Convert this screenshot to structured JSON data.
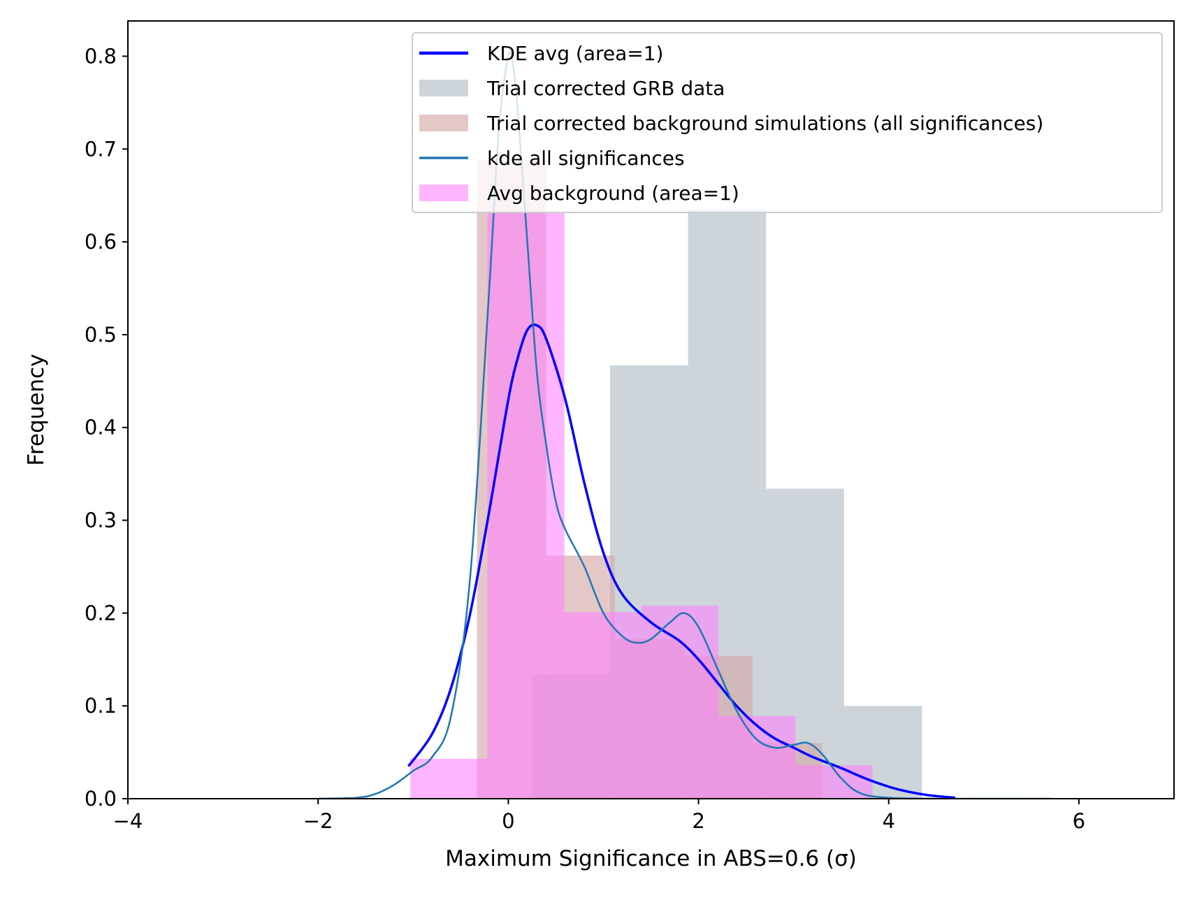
{
  "chart_data": {
    "type": "bar",
    "xlabel": "Maximum Significance in ABS=0.6 (σ)",
    "ylabel": "Frequency",
    "xlim": [
      -4,
      7
    ],
    "ylim": [
      0,
      0.838
    ],
    "xticks": [
      -4,
      -2,
      0,
      2,
      4,
      6
    ],
    "yticks": [
      0.0,
      0.1,
      0.2,
      0.3,
      0.4,
      0.5,
      0.6,
      0.7,
      0.8
    ],
    "grid": false,
    "legend_placement": "top-right",
    "colors": {
      "kde_avg": "#0000ff",
      "grb_hist": "#aebbc4",
      "bg_sim_hist": "#d3a7a7",
      "kde_all": "#1f77b4",
      "avg_bg_hist": "#ff80ff"
    },
    "legend": [
      {
        "key": "kde_avg",
        "label": "KDE avg (area=1)",
        "kind": "line"
      },
      {
        "key": "grb",
        "label": "Trial corrected GRB data",
        "kind": "patch"
      },
      {
        "key": "bgsim",
        "label": "Trial corrected background simulations (all significances)",
        "kind": "patch"
      },
      {
        "key": "kde_all",
        "label": "kde all significances",
        "kind": "line"
      },
      {
        "key": "avgbg",
        "label": "Avg background (area=1)",
        "kind": "patch"
      }
    ],
    "histograms": [
      {
        "key": "grb",
        "name": "Trial corrected GRB data",
        "color": "#aebbc4",
        "opacity": 0.62,
        "bins": [
          {
            "x0": 0.25,
            "x1": 1.07,
            "y": 0.134
          },
          {
            "x0": 1.07,
            "x1": 1.89,
            "y": 0.467
          },
          {
            "x0": 1.89,
            "x1": 2.71,
            "y": 0.635
          },
          {
            "x0": 2.71,
            "x1": 3.53,
            "y": 0.334
          },
          {
            "x0": 3.53,
            "x1": 4.35,
            "y": 0.1
          }
        ]
      },
      {
        "key": "bgsim",
        "name": "Trial corrected background simulations (all significances)",
        "color": "#d3a7a7",
        "opacity": 0.62,
        "bins": [
          {
            "x0": -0.33,
            "x1": 0.4,
            "y": 0.688
          },
          {
            "x0": 0.4,
            "x1": 1.12,
            "y": 0.262
          },
          {
            "x0": 1.12,
            "x1": 1.85,
            "y": 0.172
          },
          {
            "x0": 1.85,
            "x1": 2.57,
            "y": 0.154
          },
          {
            "x0": 2.57,
            "x1": 3.3,
            "y": 0.06
          }
        ]
      },
      {
        "key": "avgbg",
        "name": "Avg background (area=1)",
        "color": "#ff80ff",
        "opacity": 0.58,
        "bins": [
          {
            "x0": -1.03,
            "x1": -0.22,
            "y": 0.043
          },
          {
            "x0": -0.22,
            "x1": 0.59,
            "y": 0.632
          },
          {
            "x0": 0.59,
            "x1": 1.4,
            "y": 0.201
          },
          {
            "x0": 1.4,
            "x1": 2.21,
            "y": 0.208
          },
          {
            "x0": 2.21,
            "x1": 3.02,
            "y": 0.089
          },
          {
            "x0": 3.02,
            "x1": 3.83,
            "y": 0.036
          }
        ]
      }
    ],
    "series": [
      {
        "key": "kde_avg",
        "name": "KDE avg (area=1)",
        "color": "#0000ff",
        "width": 3.5,
        "x": [
          -1.05,
          -0.8,
          -0.6,
          -0.4,
          -0.2,
          0.0,
          0.1,
          0.2,
          0.3,
          0.4,
          0.6,
          0.8,
          1.0,
          1.2,
          1.5,
          1.8,
          2.0,
          2.2,
          2.4,
          2.6,
          2.8,
          3.0,
          3.2,
          3.5,
          3.8,
          4.1,
          4.4,
          4.7
        ],
        "y": [
          0.035,
          0.07,
          0.12,
          0.2,
          0.31,
          0.43,
          0.475,
          0.505,
          0.51,
          0.495,
          0.43,
          0.34,
          0.265,
          0.22,
          0.19,
          0.17,
          0.15,
          0.125,
          0.1,
          0.08,
          0.065,
          0.055,
          0.045,
          0.033,
          0.02,
          0.01,
          0.004,
          0.001
        ]
      },
      {
        "key": "kde_all",
        "name": "kde all significances",
        "color": "#1f77b4",
        "width": 2.5,
        "x": [
          -2.0,
          -1.6,
          -1.4,
          -1.2,
          -1.0,
          -0.8,
          -0.6,
          -0.4,
          -0.2,
          -0.1,
          0.0,
          0.05,
          0.1,
          0.2,
          0.3,
          0.4,
          0.5,
          0.6,
          0.8,
          1.0,
          1.2,
          1.35,
          1.5,
          1.7,
          1.85,
          2.0,
          2.2,
          2.4,
          2.6,
          2.8,
          3.0,
          3.15,
          3.3,
          3.5,
          3.7,
          4.0,
          4.5,
          5.0,
          5.4,
          5.7
        ],
        "y": [
          0.0,
          0.001,
          0.005,
          0.015,
          0.03,
          0.045,
          0.09,
          0.24,
          0.55,
          0.72,
          0.8,
          0.79,
          0.74,
          0.6,
          0.46,
          0.38,
          0.32,
          0.29,
          0.25,
          0.2,
          0.175,
          0.168,
          0.172,
          0.19,
          0.2,
          0.185,
          0.14,
          0.095,
          0.065,
          0.055,
          0.058,
          0.06,
          0.048,
          0.022,
          0.006,
          0.001,
          0.0,
          0.0,
          0.0,
          0.0
        ]
      }
    ]
  }
}
